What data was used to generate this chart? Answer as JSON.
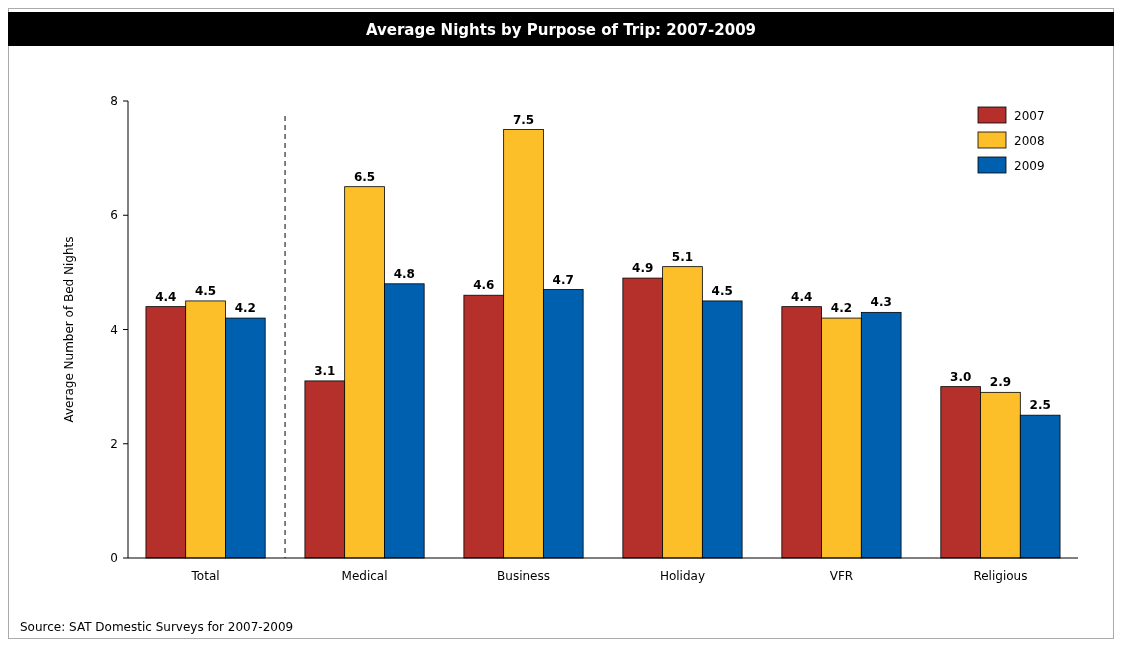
{
  "chart_data": {
    "type": "bar",
    "title": "Average Nights by Purpose of Trip: 2007-2009",
    "ylabel": "Average Number of Bed Nights",
    "categories": [
      "Total",
      "Medical",
      "Business",
      "Holiday",
      "VFR",
      "Religious"
    ],
    "series": [
      {
        "name": "2007",
        "color": "#b5302a",
        "values": [
          4.4,
          3.1,
          4.6,
          4.9,
          4.4,
          3.0
        ],
        "value_labels": [
          "4.4",
          "3.1",
          "4.6",
          "4.9",
          "4.4",
          "3.0"
        ]
      },
      {
        "name": "2008",
        "color": "#fcbf2a",
        "values": [
          4.5,
          6.5,
          7.5,
          5.1,
          4.2,
          2.9
        ],
        "value_labels": [
          "4.5",
          "6.5",
          "7.5",
          "5.1",
          "4.2",
          "2.9"
        ]
      },
      {
        "name": "2009",
        "color": "#0060b0",
        "values": [
          4.2,
          4.8,
          4.7,
          4.5,
          4.3,
          2.5
        ],
        "value_labels": [
          "4.2",
          "4.8",
          "4.7",
          "4.5",
          "4.3",
          "2.5"
        ]
      }
    ],
    "ylim": [
      0,
      8
    ],
    "yticks": [
      0,
      2,
      4,
      6,
      8
    ],
    "grid": false,
    "legend": "top right",
    "annotations": [
      "Source: SAT Domestic Surveys for 2007-2009"
    ]
  }
}
